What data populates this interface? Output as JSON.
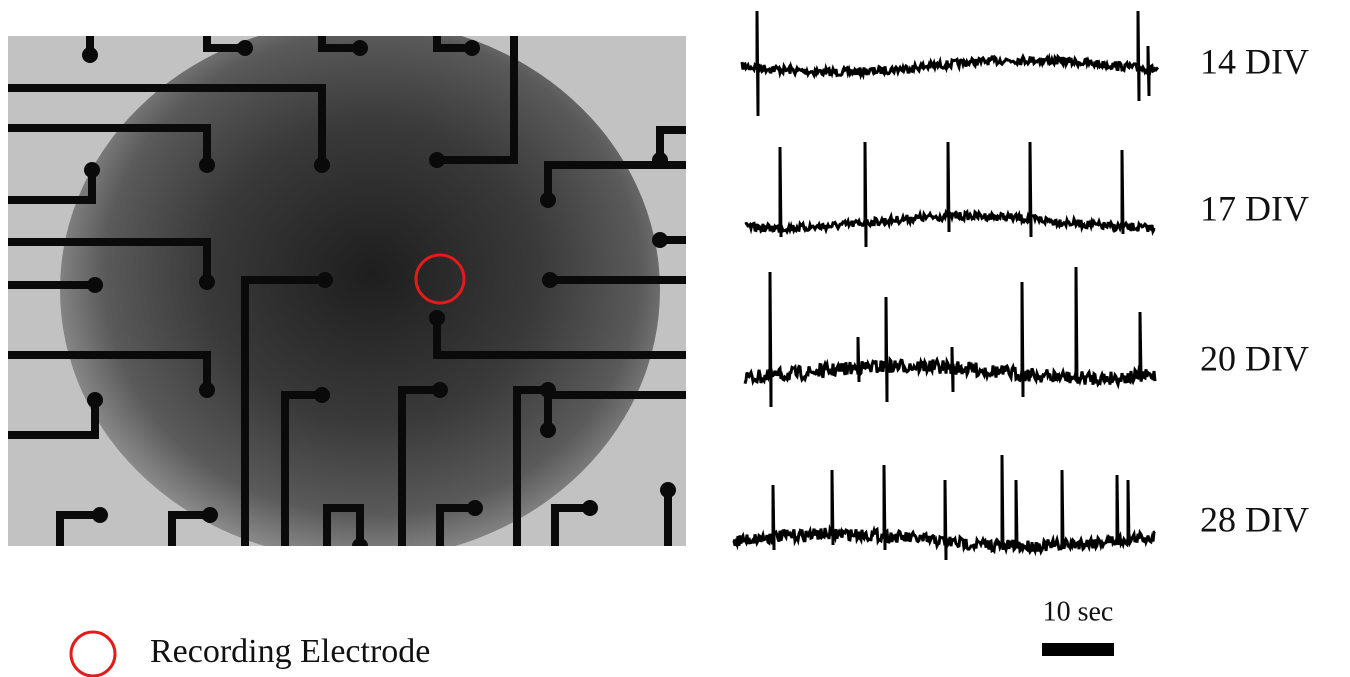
{
  "traces": [
    {
      "label": "14 DIV"
    },
    {
      "label": "17 DIV"
    },
    {
      "label": "20 DIV"
    },
    {
      "label": "28 DIV"
    }
  ],
  "scale_bar": {
    "label": "10 sec"
  },
  "legend": {
    "label": "Recording Electrode"
  }
}
